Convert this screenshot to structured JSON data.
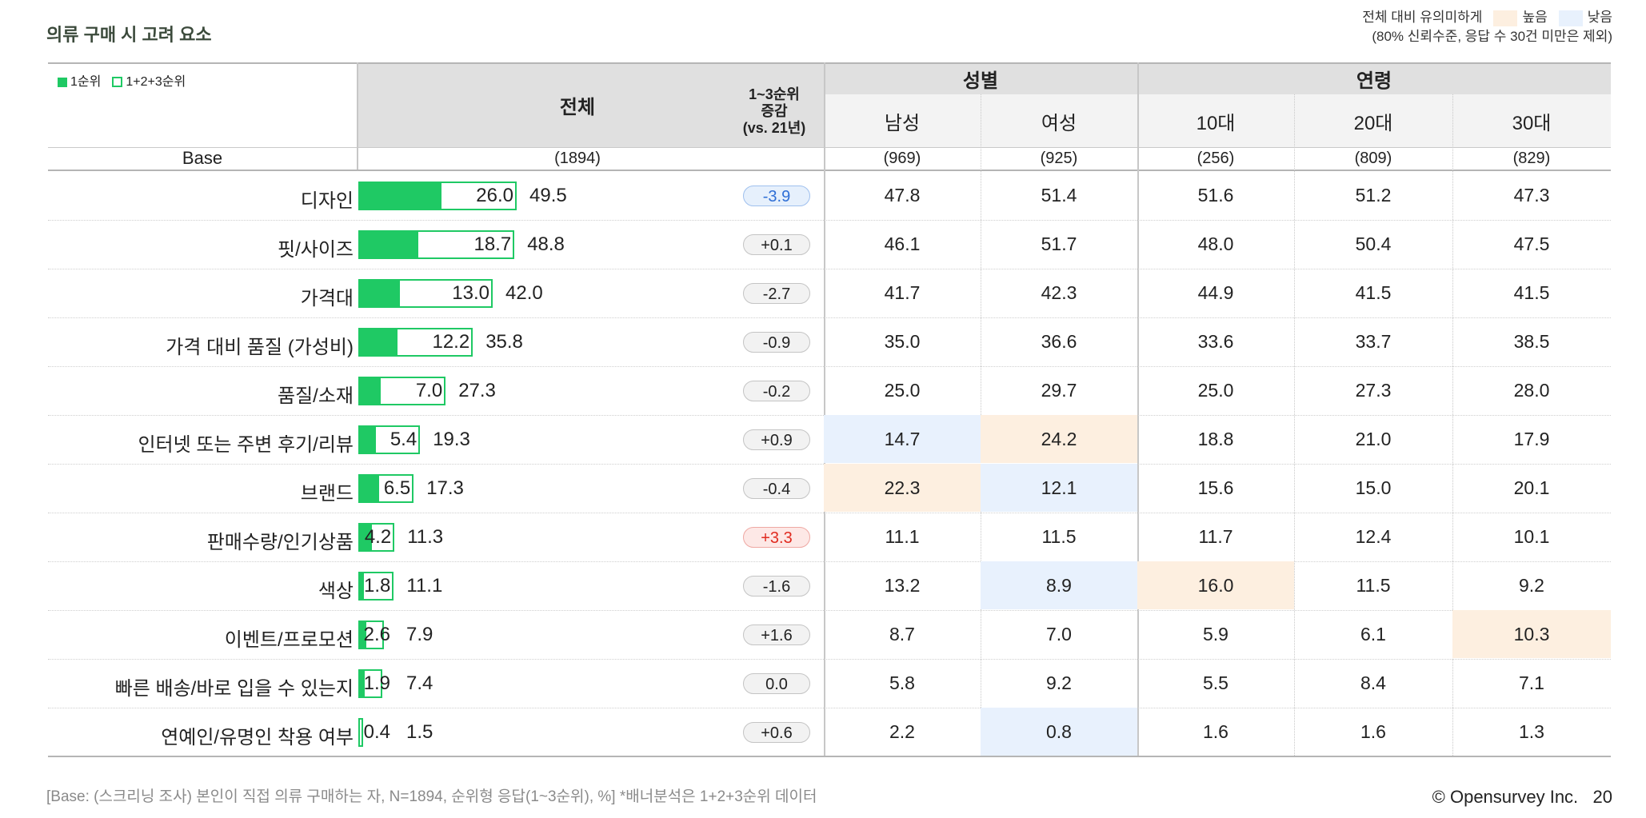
{
  "page": {
    "title": "의류 구매 시 고려 요소",
    "legend_sig_title": "전체 대비 유의미하게",
    "legend_high": "높음",
    "legend_low": "낮음",
    "legend_note": "(80% 신뢰수준, 응답 수 30건 미만은 제외)",
    "legend_rank1": "1순위",
    "legend_rank123": "1+2+3순위",
    "footnote": "[Base: (스크리닝 조사) 본인이 직접 의류 구매하는 자, N=1894, 순위형 응답(1~3순위), %] *배너분석은 1+2+3순위 데이터",
    "copyright": "© Opensurvey Inc.",
    "page_number": "20",
    "colors": {
      "bar": "#1fc964",
      "high": "#fdefe0",
      "low": "#e8f1fd",
      "delta_neg": "#2f6fd6",
      "delta_pos": "#e02b20"
    }
  },
  "table": {
    "header_total": "전체",
    "header_delta": [
      "1~3순위",
      "증감",
      "(vs. 21년)"
    ],
    "group_gender": "성별",
    "group_age": "연령",
    "columns": [
      "남성",
      "여성",
      "10대",
      "20대",
      "30대"
    ],
    "base_label": "Base",
    "base_total": "(1894)",
    "base_values": [
      "(969)",
      "(925)",
      "(256)",
      "(809)",
      "(829)"
    ]
  },
  "chart_data": {
    "type": "bar",
    "title": "의류 구매 시 고려 요소",
    "categories": [
      "디자인",
      "핏/사이즈",
      "가격대",
      "가격 대비 품질 (가성비)",
      "품질/소재",
      "인터넷 또는 주변 후기/리뷰",
      "브랜드",
      "판매수량/인기상품",
      "색상",
      "이벤트/프로모션",
      "빠른 배송/바로 입을 수 있는지",
      "연예인/유명인 착용 여부"
    ],
    "series": [
      {
        "name": "1순위",
        "values": [
          26.0,
          18.7,
          13.0,
          12.2,
          7.0,
          5.4,
          6.5,
          4.2,
          1.8,
          2.6,
          1.9,
          0.4
        ]
      },
      {
        "name": "1+2+3순위",
        "values": [
          49.5,
          48.8,
          42.0,
          35.8,
          27.3,
          19.3,
          17.3,
          11.3,
          11.1,
          7.9,
          7.4,
          1.5
        ]
      }
    ],
    "delta_vs_21": [
      "-3.9",
      "+0.1",
      "-2.7",
      "-0.9",
      "-0.2",
      "+0.9",
      "-0.4",
      "+3.3",
      "-1.6",
      "+1.6",
      "0.0",
      "+0.6"
    ],
    "banner": {
      "columns": [
        "남성",
        "여성",
        "10대",
        "20대",
        "30대"
      ],
      "rows": [
        [
          "47.8",
          "51.4",
          "51.6",
          "51.2",
          "47.3"
        ],
        [
          "46.1",
          "51.7",
          "48.0",
          "50.4",
          "47.5"
        ],
        [
          "41.7",
          "42.3",
          "44.9",
          "41.5",
          "41.5"
        ],
        [
          "35.0",
          "36.6",
          "33.6",
          "33.7",
          "38.5"
        ],
        [
          "25.0",
          "29.7",
          "25.0",
          "27.3",
          "28.0"
        ],
        [
          "14.7",
          "24.2",
          "18.8",
          "21.0",
          "17.9"
        ],
        [
          "22.3",
          "12.1",
          "15.6",
          "15.0",
          "20.1"
        ],
        [
          "11.1",
          "11.5",
          "11.7",
          "12.4",
          "10.1"
        ],
        [
          "13.2",
          "8.9",
          "16.0",
          "11.5",
          "9.2"
        ],
        [
          "8.7",
          "7.0",
          "5.9",
          "6.1",
          "10.3"
        ],
        [
          "5.8",
          "9.2",
          "5.5",
          "8.4",
          "7.1"
        ],
        [
          "2.2",
          "0.8",
          "1.6",
          "1.6",
          "1.3"
        ]
      ],
      "significance": [
        [
          "",
          "",
          "",
          "",
          ""
        ],
        [
          "",
          "",
          "",
          "",
          ""
        ],
        [
          "",
          "",
          "",
          "",
          ""
        ],
        [
          "",
          "",
          "",
          "",
          ""
        ],
        [
          "",
          "",
          "",
          "",
          ""
        ],
        [
          "low",
          "high",
          "",
          "",
          ""
        ],
        [
          "high",
          "low",
          "",
          "",
          ""
        ],
        [
          "",
          "",
          "",
          "",
          ""
        ],
        [
          "",
          "low",
          "high",
          "",
          ""
        ],
        [
          "",
          "",
          "",
          "",
          "high"
        ],
        [
          "",
          "",
          "",
          "",
          ""
        ],
        [
          "",
          "low",
          "",
          "",
          ""
        ]
      ]
    },
    "xlim": [
      0,
      100
    ]
  }
}
